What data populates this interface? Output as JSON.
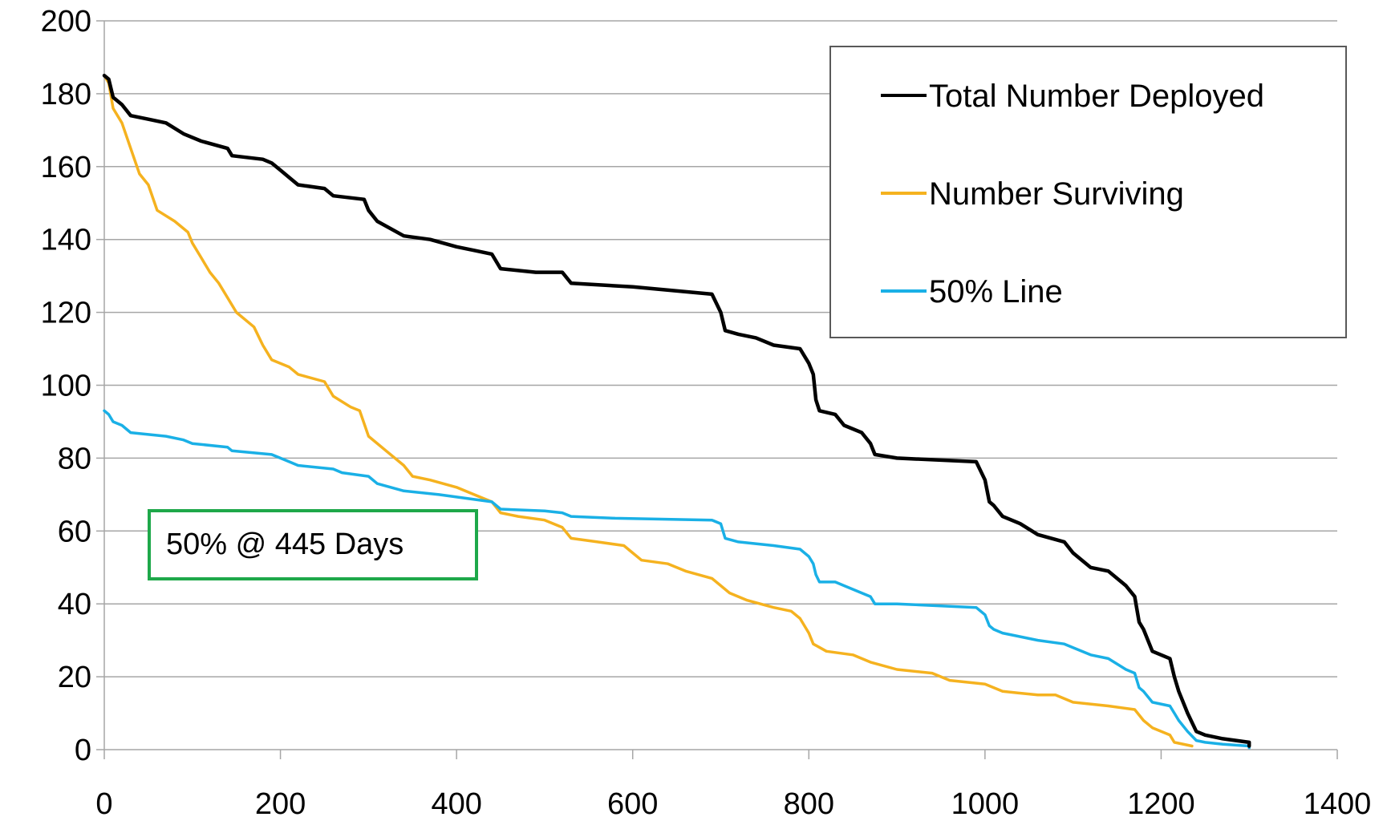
{
  "chart_data": {
    "type": "line",
    "xlim": [
      0,
      1400
    ],
    "ylim": [
      0,
      200
    ],
    "x_ticks": [
      0,
      200,
      400,
      600,
      800,
      1000,
      1200,
      1400
    ],
    "y_ticks": [
      0,
      20,
      40,
      60,
      80,
      100,
      120,
      140,
      160,
      180,
      200
    ],
    "grid": "horizontal",
    "legend_position": "top-right",
    "title": "",
    "xlabel": "",
    "ylabel": "",
    "colors": {
      "total": "#000000",
      "surviving": "#f5b21f",
      "fifty": "#1ab0e6",
      "annotation_border": "#1ea84a",
      "grid": "#a6a6a6",
      "axis": "#a6a6a6"
    },
    "series": [
      {
        "key": "total",
        "name": "Total Number Deployed",
        "points": [
          [
            0,
            185
          ],
          [
            5,
            184
          ],
          [
            10,
            179
          ],
          [
            20,
            177
          ],
          [
            30,
            174
          ],
          [
            50,
            173
          ],
          [
            70,
            172
          ],
          [
            90,
            169
          ],
          [
            110,
            167
          ],
          [
            140,
            165
          ],
          [
            145,
            163
          ],
          [
            180,
            162
          ],
          [
            190,
            161
          ],
          [
            200,
            159
          ],
          [
            210,
            157
          ],
          [
            220,
            155
          ],
          [
            250,
            154
          ],
          [
            260,
            152
          ],
          [
            295,
            151
          ],
          [
            300,
            148
          ],
          [
            310,
            145
          ],
          [
            340,
            141
          ],
          [
            370,
            140
          ],
          [
            400,
            138
          ],
          [
            420,
            137
          ],
          [
            440,
            136
          ],
          [
            450,
            132
          ],
          [
            490,
            131
          ],
          [
            520,
            131
          ],
          [
            530,
            128
          ],
          [
            600,
            127
          ],
          [
            690,
            125
          ],
          [
            700,
            120
          ],
          [
            705,
            115
          ],
          [
            720,
            114
          ],
          [
            740,
            113
          ],
          [
            760,
            111
          ],
          [
            790,
            110
          ],
          [
            800,
            106
          ],
          [
            805,
            103
          ],
          [
            808,
            96
          ],
          [
            812,
            93
          ],
          [
            830,
            92
          ],
          [
            840,
            89
          ],
          [
            860,
            87
          ],
          [
            870,
            84
          ],
          [
            875,
            81
          ],
          [
            900,
            80
          ],
          [
            990,
            79
          ],
          [
            1000,
            74
          ],
          [
            1005,
            68
          ],
          [
            1010,
            67
          ],
          [
            1020,
            64
          ],
          [
            1040,
            62
          ],
          [
            1060,
            59
          ],
          [
            1090,
            57
          ],
          [
            1100,
            54
          ],
          [
            1120,
            50
          ],
          [
            1140,
            49
          ],
          [
            1160,
            45
          ],
          [
            1170,
            42
          ],
          [
            1175,
            35
          ],
          [
            1180,
            33
          ],
          [
            1190,
            27
          ],
          [
            1210,
            25
          ],
          [
            1215,
            20
          ],
          [
            1220,
            16
          ],
          [
            1230,
            10
          ],
          [
            1240,
            5
          ],
          [
            1250,
            4
          ],
          [
            1270,
            3
          ],
          [
            1300,
            2
          ],
          [
            1300,
            1
          ]
        ]
      },
      {
        "key": "surviving",
        "name": "Number Surviving",
        "points": [
          [
            0,
            185
          ],
          [
            5,
            183
          ],
          [
            10,
            176
          ],
          [
            20,
            172
          ],
          [
            30,
            165
          ],
          [
            40,
            158
          ],
          [
            50,
            155
          ],
          [
            60,
            148
          ],
          [
            80,
            145
          ],
          [
            95,
            142
          ],
          [
            100,
            139
          ],
          [
            110,
            135
          ],
          [
            120,
            131
          ],
          [
            130,
            128
          ],
          [
            140,
            124
          ],
          [
            150,
            120
          ],
          [
            170,
            116
          ],
          [
            180,
            111
          ],
          [
            190,
            107
          ],
          [
            210,
            105
          ],
          [
            220,
            103
          ],
          [
            250,
            101
          ],
          [
            260,
            97
          ],
          [
            280,
            94
          ],
          [
            290,
            93
          ],
          [
            300,
            86
          ],
          [
            320,
            82
          ],
          [
            340,
            78
          ],
          [
            350,
            75
          ],
          [
            370,
            74
          ],
          [
            400,
            72
          ],
          [
            420,
            70
          ],
          [
            440,
            68
          ],
          [
            450,
            65
          ],
          [
            470,
            64
          ],
          [
            500,
            63
          ],
          [
            520,
            61
          ],
          [
            530,
            58
          ],
          [
            560,
            57
          ],
          [
            590,
            56
          ],
          [
            600,
            54
          ],
          [
            610,
            52
          ],
          [
            640,
            51
          ],
          [
            660,
            49
          ],
          [
            690,
            47
          ],
          [
            710,
            43
          ],
          [
            730,
            41
          ],
          [
            760,
            39
          ],
          [
            780,
            38
          ],
          [
            790,
            36
          ],
          [
            800,
            32
          ],
          [
            805,
            29
          ],
          [
            820,
            27
          ],
          [
            850,
            26
          ],
          [
            870,
            24
          ],
          [
            900,
            22
          ],
          [
            940,
            21
          ],
          [
            960,
            19
          ],
          [
            1000,
            18
          ],
          [
            1020,
            16
          ],
          [
            1060,
            15
          ],
          [
            1080,
            15
          ],
          [
            1100,
            13
          ],
          [
            1140,
            12
          ],
          [
            1170,
            11
          ],
          [
            1180,
            8
          ],
          [
            1190,
            6
          ],
          [
            1210,
            4
          ],
          [
            1215,
            2
          ],
          [
            1235,
            1
          ]
        ]
      },
      {
        "key": "fifty",
        "name": "50% Line",
        "points": [
          [
            0,
            93
          ],
          [
            5,
            92
          ],
          [
            10,
            90
          ],
          [
            20,
            89
          ],
          [
            30,
            87
          ],
          [
            70,
            86
          ],
          [
            90,
            85
          ],
          [
            100,
            84
          ],
          [
            140,
            83
          ],
          [
            145,
            82
          ],
          [
            190,
            81
          ],
          [
            200,
            80
          ],
          [
            210,
            79
          ],
          [
            220,
            78
          ],
          [
            260,
            77
          ],
          [
            270,
            76
          ],
          [
            300,
            75
          ],
          [
            310,
            73
          ],
          [
            340,
            71
          ],
          [
            380,
            70
          ],
          [
            410,
            69
          ],
          [
            440,
            68
          ],
          [
            450,
            66
          ],
          [
            500,
            65.5
          ],
          [
            520,
            65
          ],
          [
            530,
            64
          ],
          [
            580,
            63.5
          ],
          [
            690,
            63
          ],
          [
            700,
            62
          ],
          [
            705,
            58
          ],
          [
            720,
            57
          ],
          [
            760,
            56
          ],
          [
            790,
            55
          ],
          [
            800,
            53
          ],
          [
            805,
            51
          ],
          [
            808,
            48
          ],
          [
            812,
            46
          ],
          [
            830,
            46
          ],
          [
            840,
            45
          ],
          [
            860,
            43
          ],
          [
            870,
            42
          ],
          [
            875,
            40
          ],
          [
            900,
            40
          ],
          [
            990,
            39
          ],
          [
            1000,
            37
          ],
          [
            1005,
            34
          ],
          [
            1010,
            33
          ],
          [
            1020,
            32
          ],
          [
            1040,
            31
          ],
          [
            1060,
            30
          ],
          [
            1090,
            29
          ],
          [
            1100,
            28
          ],
          [
            1120,
            26
          ],
          [
            1140,
            25
          ],
          [
            1160,
            22
          ],
          [
            1170,
            21
          ],
          [
            1175,
            17
          ],
          [
            1180,
            16
          ],
          [
            1190,
            13
          ],
          [
            1210,
            12
          ],
          [
            1215,
            10
          ],
          [
            1220,
            8
          ],
          [
            1230,
            5
          ],
          [
            1240,
            2.5
          ],
          [
            1250,
            2
          ],
          [
            1270,
            1.5
          ],
          [
            1300,
            1
          ],
          [
            1300,
            0.5
          ]
        ]
      }
    ],
    "legend": {
      "entries": [
        "Total Number Deployed",
        "Number Surviving",
        "50% Line"
      ]
    },
    "annotation": {
      "text": "50% @ 445 Days"
    }
  }
}
